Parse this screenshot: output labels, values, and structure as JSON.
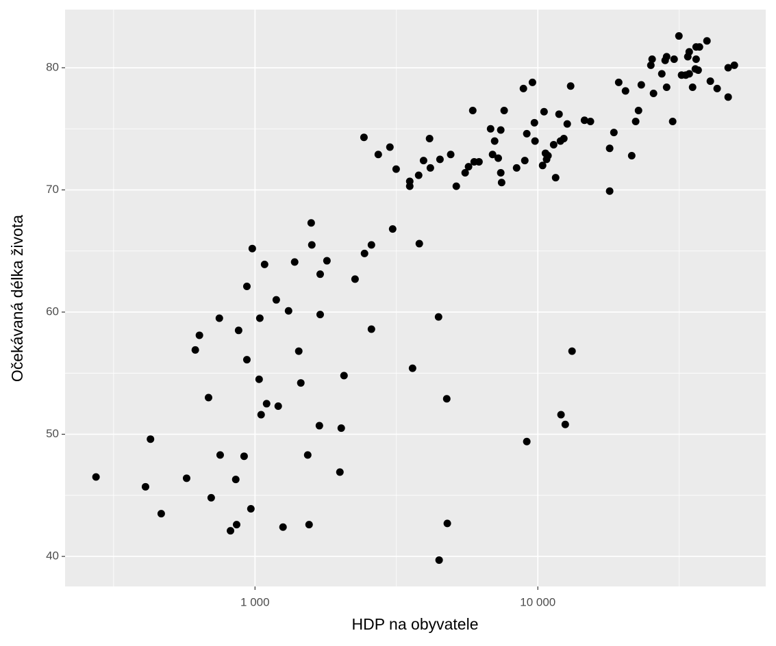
{
  "chart_data": {
    "type": "scatter",
    "x_label": "HDP na obyvatele",
    "y_label": "Očekávaná délka života",
    "x_log": true,
    "grid": true,
    "color": "#000000",
    "xlim": [
      213,
      63950
    ],
    "ylim": [
      37.54,
      84.76
    ],
    "xticks": [
      {
        "value": 1000,
        "label": "1 000"
      },
      {
        "value": 10000,
        "label": "10 000"
      }
    ],
    "yticks": [
      40,
      50,
      60,
      70,
      80
    ],
    "x_minor_grid": [
      316.2,
      3162.3,
      31622.8
    ],
    "y_minor_grid": [
      45,
      55,
      65,
      75
    ],
    "x": [
      274,
      410,
      427,
      466,
      573,
      615,
      636,
      685,
      700,
      748,
      753,
      819,
      855,
      861,
      875,
      915,
      936,
      936,
      967,
      978,
      1034,
      1040,
      1051,
      1081,
      1099,
      1189,
      1208,
      1256,
      1314,
      1381,
      1428,
      1452,
      1536,
      1553,
      1580,
      1588,
      1689,
      1700,
      1700,
      1796,
      1996,
      2018,
      2064,
      2258,
      2428,
      2439,
      2580,
      2580,
      2728,
      2999,
      3067,
      3155,
      3525,
      3525,
      3606,
      3790,
      3810,
      3944,
      4142,
      4169,
      4456,
      4477,
      4508,
      4764,
      4786,
      4920,
      5149,
      5534,
      5689,
      5888,
      5956,
      6194,
      6808,
      6918,
      7036,
      7245,
      7396,
      7396,
      7447,
      7603,
      8414,
      8893,
      8995,
      9141,
      9572,
      9726,
      9773,
      9141,
      10398,
      10520,
      10641,
      10740,
      10864,
      11376,
      11561,
      11885,
      12023,
      12078,
      12359,
      12503,
      12706,
      13063,
      13213,
      14622,
      15348,
      17947,
      17947,
      18578,
      19320,
      20418,
      21478,
      22182,
      22700,
      23220,
      25100,
      25360,
      25650,
      27440,
      28200,
      28540,
      28540,
      29980,
      30330,
      31540,
      32230,
      33350,
      33910,
      34300,
      34300,
      35260,
      36060,
      36280,
      36280,
      36890,
      37280,
      39630,
      40740,
      43060,
      47100,
      47100,
      49530
    ],
    "y": [
      46.5,
      45.7,
      49.6,
      43.5,
      46.4,
      56.9,
      58.1,
      53.0,
      44.8,
      59.5,
      48.3,
      42.1,
      46.3,
      42.6,
      58.5,
      48.2,
      62.1,
      56.1,
      43.9,
      65.2,
      54.5,
      59.5,
      51.6,
      63.9,
      52.5,
      61.0,
      52.3,
      42.4,
      60.1,
      64.1,
      56.8,
      54.2,
      48.3,
      42.6,
      67.3,
      65.5,
      50.7,
      63.1,
      59.8,
      64.2,
      46.9,
      50.5,
      54.8,
      62.7,
      74.3,
      64.8,
      65.5,
      58.6,
      72.9,
      73.5,
      66.8,
      71.7,
      70.7,
      70.3,
      55.4,
      71.2,
      65.6,
      72.4,
      74.2,
      71.8,
      59.6,
      39.7,
      72.5,
      52.9,
      42.7,
      72.9,
      70.3,
      71.4,
      71.9,
      76.5,
      72.3,
      72.3,
      75.0,
      72.9,
      74.0,
      72.6,
      74.9,
      71.4,
      70.6,
      76.5,
      71.8,
      78.3,
      72.4,
      74.6,
      78.8,
      75.5,
      74.0,
      49.4,
      72.0,
      76.4,
      73.0,
      72.5,
      72.8,
      73.7,
      71.0,
      76.2,
      74.0,
      51.6,
      74.2,
      50.8,
      75.4,
      78.5,
      56.8,
      75.7,
      75.6,
      73.4,
      69.9,
      74.7,
      78.8,
      78.1,
      72.8,
      75.6,
      76.5,
      78.6,
      80.2,
      80.7,
      77.9,
      79.5,
      80.6,
      80.9,
      78.4,
      75.6,
      80.7,
      82.6,
      79.4,
      79.4,
      80.9,
      81.3,
      79.5,
      78.4,
      79.9,
      81.7,
      80.7,
      79.8,
      81.7,
      82.2,
      78.9,
      78.3,
      80.0,
      77.6,
      80.2
    ]
  }
}
